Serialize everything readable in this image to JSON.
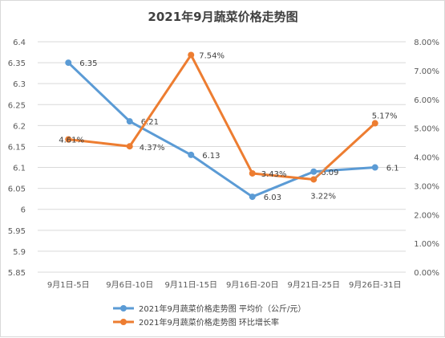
{
  "chart_data": {
    "type": "line",
    "title": "2021年9月蔬菜价格走势图",
    "categories": [
      "9月1日-5日",
      "9月6日-10日",
      "9月11日-15日",
      "9月16日-20日",
      "9月21日-25日",
      "9月26日-31日"
    ],
    "series": [
      {
        "name": "2021年9月蔬菜价格走势图  平均价（公斤/元）",
        "axis": "left",
        "color": "#5b9bd5",
        "values": [
          6.35,
          6.21,
          6.13,
          6.03,
          6.09,
          6.1
        ],
        "labels": [
          "6.35",
          "6.21",
          "6.13",
          "6.03",
          "6.09",
          "6.1"
        ]
      },
      {
        "name": "2021年9月蔬菜价格走势图  环比增长率",
        "axis": "right",
        "color": "#ed7d31",
        "values": [
          4.61,
          4.37,
          7.54,
          3.43,
          3.22,
          5.17
        ],
        "labels": [
          "4.61%",
          "4.37%",
          "7.54%",
          "3.43%",
          "3.22%",
          "5.17%"
        ]
      }
    ],
    "y_left": {
      "ylim": [
        5.85,
        6.4
      ],
      "ticks": [
        "5.85",
        "5.9",
        "5.95",
        "6",
        "6.05",
        "6.1",
        "6.15",
        "6.2",
        "6.25",
        "6.3",
        "6.35",
        "6.4"
      ]
    },
    "y_right": {
      "ylim": [
        0,
        8
      ],
      "unit": "%",
      "ticks": [
        "0.00%",
        "1.00%",
        "2.00%",
        "3.00%",
        "4.00%",
        "5.00%",
        "6.00%",
        "7.00%",
        "8.00%"
      ]
    },
    "grid": true,
    "legend_position": "bottom"
  }
}
